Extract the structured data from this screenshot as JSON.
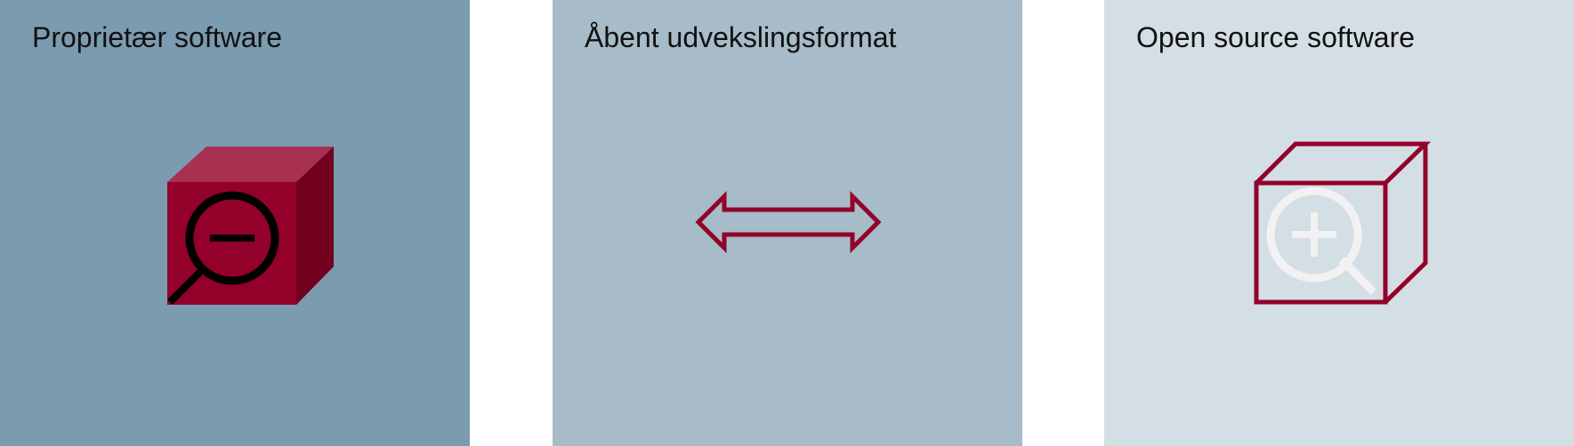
{
  "colors": {
    "proprietary_bg": "#7b9bb0",
    "exchange_bg": "#a7bbc8",
    "open_source_bg": "#d3dee5",
    "accent": "#93002a",
    "accent_light": "#a93050",
    "accent_dark": "#72001f"
  },
  "panels": {
    "proprietary": {
      "title": "Proprietær software",
      "icon": "closed-box-with-zoom-out-magnifier-icon"
    },
    "exchange_format": {
      "title": "Åbent udvekslingsformat",
      "icon": "double-headed-arrow-icon"
    },
    "open_source": {
      "title": "Open source software",
      "icon": "open-box-with-zoom-in-magnifier-icon"
    }
  }
}
